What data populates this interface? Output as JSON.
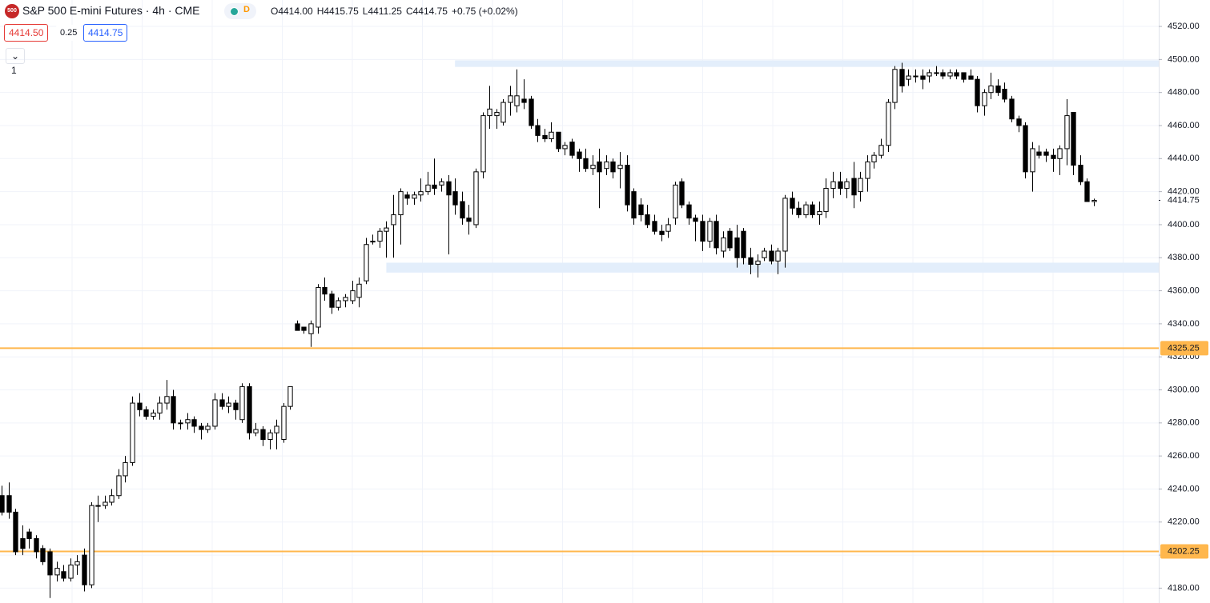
{
  "chart_data": {
    "type": "candlestick",
    "header": {
      "icon": "500",
      "title": "S&P 500 E-mini Futures · 4h · CME",
      "status": "D",
      "ohlc": [
        "O4414.00",
        "H4415.75",
        "L4411.25",
        "C4414.75",
        "+0.75 (+0.02%)"
      ],
      "bid": "4414.50",
      "spread": "0.25",
      "ask": "4414.75",
      "indicators": "1"
    },
    "open": [
      4236,
      4236,
      4226,
      4210,
      4214,
      4210,
      4204,
      4202,
      4188,
      4190,
      4186,
      4194,
      4200,
      4182,
      4230,
      4230,
      4232,
      4236,
      4248,
      4256,
      4292,
      4288,
      4284,
      4286,
      4292,
      4296,
      4280,
      4280,
      4282,
      4278,
      4276,
      4278,
      4294,
      4290,
      4292,
      4282,
      4302,
      4274,
      4276,
      4270,
      4274,
      4270,
      4290,
      4340,
      4338,
      4334,
      4338,
      4362,
      4358,
      4350,
      4354,
      4354,
      4356,
      4366,
      4390,
      4390,
      4396,
      4400,
      4406,
      4418,
      4416,
      4418,
      4420,
      4424,
      4424,
      4426,
      4420,
      4414,
      4404,
      4400,
      4432,
      4466,
      4466,
      4462,
      4474,
      4472,
      4476,
      4476,
      4460,
      4454,
      4452,
      4456,
      4446,
      4450,
      4444,
      4440,
      4434,
      4438,
      4434,
      4438,
      4434,
      4436,
      4420,
      4412,
      4406,
      4402,
      4396,
      4396,
      4404,
      4426,
      4412,
      4404,
      4402,
      4390,
      4402,
      4384,
      4396,
      4392,
      4396,
      4380,
      4376,
      4380,
      4384,
      4378,
      4384,
      4416,
      4410,
      4406,
      4412,
      4406,
      4408,
      4422,
      4426,
      4422,
      4428,
      4420,
      4428,
      4438,
      4442,
      4448,
      4474,
      4494,
      4488,
      4490,
      4490,
      4490,
      4492,
      4492,
      4490,
      4492,
      4492,
      4490,
      4488,
      4472,
      4480,
      4484,
      4482,
      4476,
      4464,
      4460,
      4432,
      4444,
      4444,
      4442,
      4440,
      4446,
      4468,
      4436,
      4426,
      4414
    ],
    "high": [
      4242,
      4244,
      4228,
      4218,
      4216,
      4212,
      4206,
      4204,
      4196,
      4194,
      4198,
      4200,
      4204,
      4232,
      4236,
      4236,
      4240,
      4252,
      4260,
      4296,
      4298,
      4290,
      4288,
      4296,
      4306,
      4300,
      4282,
      4286,
      4284,
      4280,
      4280,
      4298,
      4298,
      4296,
      4294,
      4304,
      4304,
      4280,
      4278,
      4276,
      4282,
      4292,
      4302,
      4342,
      4338,
      4342,
      4364,
      4368,
      4360,
      4356,
      4358,
      4366,
      4368,
      4392,
      4394,
      4398,
      4402,
      4418,
      4422,
      4420,
      4420,
      4428,
      4432,
      4440,
      4428,
      4430,
      4428,
      4420,
      4412,
      4434,
      4468,
      4484,
      4470,
      4476,
      4484,
      4494,
      4488,
      4478,
      4464,
      4458,
      4462,
      4456,
      4450,
      4452,
      4446,
      4446,
      4442,
      4446,
      4442,
      4440,
      4444,
      4442,
      4422,
      4416,
      4412,
      4406,
      4400,
      4404,
      4426,
      4428,
      4414,
      4406,
      4406,
      4404,
      4406,
      4396,
      4398,
      4400,
      4398,
      4386,
      4382,
      4386,
      4388,
      4386,
      4418,
      4420,
      4414,
      4414,
      4414,
      4414,
      4428,
      4432,
      4432,
      4428,
      4438,
      4432,
      4442,
      4444,
      4452,
      4476,
      4496,
      4498,
      4494,
      4494,
      4494,
      4494,
      4496,
      4494,
      4494,
      4494,
      4492,
      4494,
      4490,
      4482,
      4492,
      4488,
      4486,
      4478,
      4466,
      4462,
      4450,
      4448,
      4446,
      4446,
      4448,
      4476,
      4468,
      4442,
      4428,
      4415.75
    ],
    "low": [
      4224,
      4222,
      4200,
      4200,
      4204,
      4198,
      4194,
      4174,
      4184,
      4184,
      4184,
      4188,
      4178,
      4180,
      4220,
      4228,
      4230,
      4234,
      4244,
      4254,
      4284,
      4282,
      4282,
      4282,
      4288,
      4276,
      4276,
      4276,
      4274,
      4270,
      4274,
      4276,
      4288,
      4286,
      4282,
      4280,
      4270,
      4272,
      4266,
      4264,
      4264,
      4268,
      4288,
      4336,
      4334,
      4326,
      4334,
      4354,
      4346,
      4348,
      4350,
      4352,
      4350,
      4364,
      4388,
      4386,
      4380,
      4380,
      4388,
      4412,
      4412,
      4414,
      4418,
      4418,
      4420,
      4382,
      4406,
      4400,
      4394,
      4398,
      4428,
      4458,
      4458,
      4460,
      4466,
      4468,
      4470,
      4458,
      4450,
      4450,
      4450,
      4444,
      4442,
      4440,
      4432,
      4432,
      4430,
      4410,
      4430,
      4428,
      4422,
      4408,
      4400,
      4402,
      4398,
      4394,
      4390,
      4392,
      4400,
      4410,
      4400,
      4390,
      4384,
      4386,
      4382,
      4380,
      4384,
      4374,
      4376,
      4370,
      4368,
      4378,
      4376,
      4370,
      4374,
      4406,
      4404,
      4404,
      4404,
      4400,
      4404,
      4416,
      4418,
      4416,
      4410,
      4414,
      4420,
      4434,
      4440,
      4444,
      4470,
      4480,
      4484,
      4486,
      4482,
      4486,
      4490,
      4488,
      4488,
      4488,
      4486,
      4488,
      4468,
      4466,
      4476,
      4478,
      4474,
      4462,
      4456,
      4428,
      4420,
      4440,
      4438,
      4432,
      4430,
      4436,
      4430,
      4424,
      4414,
      4411.25
    ],
    "close": [
      4226,
      4226,
      4202,
      4204,
      4210,
      4202,
      4196,
      4188,
      4192,
      4186,
      4194,
      4196,
      4182,
      4230,
      4230,
      4232,
      4236,
      4248,
      4256,
      4292,
      4288,
      4284,
      4286,
      4292,
      4296,
      4280,
      4280,
      4282,
      4278,
      4276,
      4278,
      4294,
      4290,
      4292,
      4288,
      4302,
      4274,
      4276,
      4270,
      4274,
      4278,
      4290,
      4302,
      4336,
      4336,
      4340,
      4362,
      4358,
      4350,
      4354,
      4356,
      4360,
      4364,
      4388,
      4390,
      4396,
      4398,
      4406,
      4420,
      4416,
      4418,
      4420,
      4424,
      4422,
      4426,
      4418,
      4412,
      4404,
      4402,
      4432,
      4466,
      4470,
      4468,
      4474,
      4478,
      4478,
      4474,
      4460,
      4454,
      4452,
      4456,
      4446,
      4448,
      4442,
      4440,
      4434,
      4436,
      4432,
      4438,
      4432,
      4436,
      4412,
      4404,
      4406,
      4400,
      4396,
      4394,
      4400,
      4424,
      4412,
      4404,
      4402,
      4390,
      4402,
      4386,
      4392,
      4386,
      4380,
      4380,
      4376,
      4378,
      4384,
      4378,
      4384,
      4416,
      4410,
      4406,
      4412,
      4406,
      4408,
      4422,
      4426,
      4422,
      4426,
      4418,
      4428,
      4438,
      4442,
      4448,
      4474,
      4494,
      4484,
      4490,
      4490,
      4488,
      4492,
      4492,
      4490,
      4492,
      4490,
      4488,
      4488,
      4472,
      4480,
      4484,
      4480,
      4476,
      4464,
      4460,
      4432,
      4446,
      4442,
      4442,
      4440,
      4446,
      4466,
      4436,
      4426,
      4414,
      4414.75
    ],
    "up_color": "#ffffff",
    "down_color": "#000000",
    "ylim": [
      4171,
      4536
    ],
    "yticks": [
      {
        "value": 4520,
        "label": "4520.00"
      },
      {
        "value": 4500,
        "label": "4500.00"
      },
      {
        "value": 4480,
        "label": "4480.00"
      },
      {
        "value": 4460,
        "label": "4460.00"
      },
      {
        "value": 4440,
        "label": "4440.00"
      },
      {
        "value": 4420,
        "label": "4420.00"
      },
      {
        "value": 4400,
        "label": "4400.00"
      },
      {
        "value": 4380,
        "label": "4380.00"
      },
      {
        "value": 4360,
        "label": "4360.00"
      },
      {
        "value": 4340,
        "label": "4340.00"
      },
      {
        "value": 4320,
        "label": "4320.00"
      },
      {
        "value": 4300,
        "label": "4300.00"
      },
      {
        "value": 4280,
        "label": "4280.00"
      },
      {
        "value": 4260,
        "label": "4260.00"
      },
      {
        "value": 4240,
        "label": "4240.00"
      },
      {
        "value": 4220,
        "label": "4220.00"
      },
      {
        "value": 4200,
        "label": "4200.00"
      },
      {
        "value": 4180,
        "label": "4180.00"
      }
    ],
    "grid": true,
    "hlines": [
      {
        "value": 4325.25,
        "label": "4325.25",
        "color": "#ffb74d"
      },
      {
        "value": 4202.25,
        "label": "4202.25",
        "color": "#ffb74d"
      }
    ],
    "zones": [
      {
        "from": 4495.5,
        "to": 4499.5,
        "from_index": 66,
        "color": "#e3eefb"
      },
      {
        "from": 4371,
        "to": 4377,
        "from_index": 56,
        "color": "#e3eefb"
      }
    ],
    "last_price": {
      "value": 4414.75,
      "label": "4414.75"
    }
  }
}
